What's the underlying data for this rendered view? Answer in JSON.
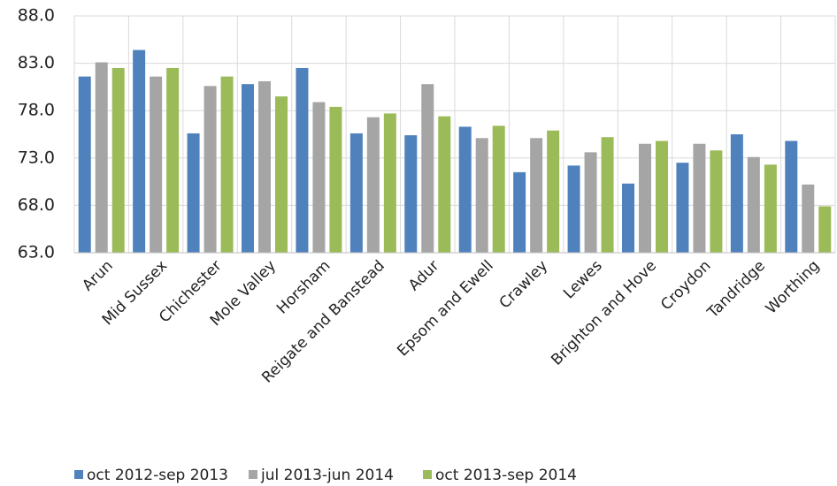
{
  "chart_data": {
    "type": "bar",
    "categories": [
      "Arun",
      "Mid Sussex",
      "Chichester",
      "Mole Valley",
      "Horsham",
      "Reigate and Banstead",
      "Adur",
      "Epsom and Ewell",
      "Crawley",
      "Lewes",
      "Brighton and Hove",
      "Croydon",
      "Tandridge",
      "Worthing"
    ],
    "series": [
      {
        "name": "oct 2012-sep 2013",
        "color": "#4f81bd",
        "values": [
          81.6,
          84.4,
          75.6,
          80.8,
          82.5,
          75.6,
          75.4,
          76.3,
          71.5,
          72.2,
          70.3,
          72.5,
          75.5,
          74.8
        ]
      },
      {
        "name": "jul 2013-jun 2014",
        "color": "#a5a5a5",
        "values": [
          83.1,
          81.6,
          80.6,
          81.1,
          78.9,
          77.3,
          80.8,
          75.1,
          75.1,
          73.6,
          74.5,
          74.5,
          73.1,
          70.2
        ]
      },
      {
        "name": "oct 2013-sep 2014",
        "color": "#9bbb59",
        "values": [
          82.5,
          82.5,
          81.6,
          79.5,
          78.4,
          77.7,
          77.4,
          76.4,
          75.9,
          75.2,
          74.8,
          73.8,
          72.3,
          67.9
        ]
      }
    ],
    "ylim": [
      63,
      88
    ],
    "yticks": [
      {
        "value": 63,
        "label": "63.0"
      },
      {
        "value": 68,
        "label": "68.0"
      },
      {
        "value": 73,
        "label": "73.0"
      },
      {
        "value": 78,
        "label": "78.0"
      },
      {
        "value": 83,
        "label": "83.0"
      },
      {
        "value": 88,
        "label": "88.0"
      }
    ],
    "grid": true,
    "legend": "bottom"
  }
}
